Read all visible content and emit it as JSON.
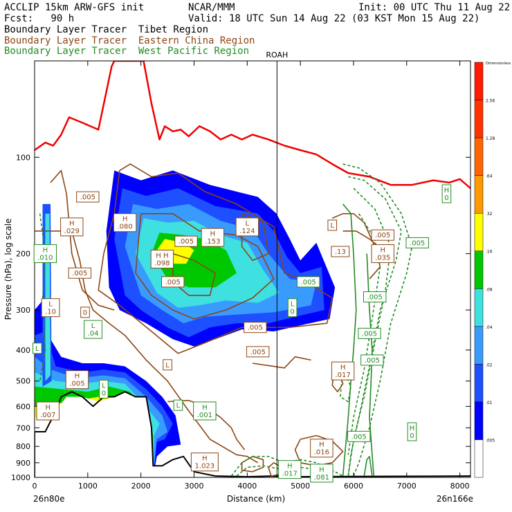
{
  "header": {
    "model": "ACCLIP 15km ARW-GFS init",
    "org": "NCAR/MMM",
    "init": "Init: 00 UTC Thu 11 Aug 22",
    "fcst": "Fcst:   90 h",
    "valid": "Valid: 18 UTC Sun 14 Aug 22 (03 KST Mon 15 Aug 22)",
    "tracers": [
      {
        "label": "Boundary Layer Tracer  Tibet Region",
        "color": "#000000"
      },
      {
        "label": "Boundary Layer Tracer  Eastern China Region",
        "color": "#8b4513"
      },
      {
        "label": "Boundary Layer Tracer  West Pacific Region",
        "color": "#228b22"
      }
    ]
  },
  "chart_data": {
    "type": "cross-section",
    "marker_label": "ROAH",
    "marker_x_km": 4560,
    "ylabel": "Pressure (hPa), log scale",
    "y_scale": "log",
    "ylim": [
      1000,
      50
    ],
    "yticks": [
      100,
      200,
      300,
      400,
      500,
      600,
      700,
      800,
      900,
      1000
    ],
    "xlabel": "Distance (km)",
    "xlim": [
      0,
      8200
    ],
    "xticks": [
      0,
      1000,
      2000,
      3000,
      4000,
      5000,
      6000,
      7000,
      8000
    ],
    "left_endpoint": "26n80e",
    "right_endpoint": "26n166e",
    "colorbar": {
      "label": "Dimensionless",
      "levels": [
        ".005",
        ".01",
        ".02",
        ".04",
        ".08",
        ".16",
        ".32",
        ".64",
        "1.28",
        "2.56"
      ],
      "colors": [
        "#ffffff",
        "#0000ff",
        "#1e50ff",
        "#3a9bff",
        "#3fe0e0",
        "#00c800",
        "#ffff00",
        "#ff9900",
        "#ff6600",
        "#ff3300",
        "#ff1a00"
      ]
    },
    "tropopause_color": "#ee0000",
    "labels": [
      {
        "text": "H\n.029",
        "x": 700,
        "p": 165,
        "color": "#8b4513"
      },
      {
        "text": ".005",
        "x": 1000,
        "p": 133,
        "color": "#8b4513"
      },
      {
        "text": "H\n.080",
        "x": 1700,
        "p": 160,
        "color": "#8b4513"
      },
      {
        "text": ".005",
        "x": 2850,
        "p": 183,
        "color": "#8b4513"
      },
      {
        "text": "H\n.153",
        "x": 3350,
        "p": 178,
        "color": "#8b4513"
      },
      {
        "text": "L\n.124",
        "x": 4000,
        "p": 165,
        "color": "#8b4513"
      },
      {
        "text": "H H\n.098",
        "x": 2400,
        "p": 208,
        "color": "#8b4513"
      },
      {
        "text": ".005",
        "x": 2600,
        "p": 245,
        "color": "#8b4513"
      },
      {
        "text": "H\n.010",
        "x": 200,
        "p": 200,
        "color": "#228b22"
      },
      {
        "text": ".005",
        "x": 850,
        "p": 230,
        "color": "#8b4513"
      },
      {
        "text": "L\n.10",
        "x": 300,
        "p": 295,
        "color": "#8b4513"
      },
      {
        "text": "0",
        "x": 950,
        "p": 305,
        "color": "#8b4513"
      },
      {
        "text": "L\n.04",
        "x": 1100,
        "p": 345,
        "color": "#228b22"
      },
      {
        "text": ".005",
        "x": 4150,
        "p": 340,
        "color": "#8b4513"
      },
      {
        "text": "L\n0",
        "x": 4850,
        "p": 295,
        "color": "#228b22"
      },
      {
        "text": ".005",
        "x": 5150,
        "p": 245,
        "color": "#228b22"
      },
      {
        "text": ".005",
        "x": 4200,
        "p": 405,
        "color": "#8b4513"
      },
      {
        "text": "L",
        "x": 2500,
        "p": 445,
        "color": "#8b4513"
      },
      {
        "text": "L",
        "x": 50,
        "p": 395,
        "color": "#228b22"
      },
      {
        "text": "H\n.005",
        "x": 800,
        "p": 495,
        "color": "#8b4513"
      },
      {
        "text": "L\n0",
        "x": 1300,
        "p": 530,
        "color": "#228b22"
      },
      {
        "text": "H\n.007",
        "x": 250,
        "p": 620,
        "color": "#8b4513"
      },
      {
        "text": "L",
        "x": 2700,
        "p": 595,
        "color": "#228b22"
      },
      {
        "text": "H\n.001",
        "x": 3200,
        "p": 620,
        "color": "#228b22"
      },
      {
        "text": "H\n1.023",
        "x": 3200,
        "p": 895,
        "color": "#8b4513"
      },
      {
        "text": "L",
        "x": 5600,
        "p": 163,
        "color": "#8b4513"
      },
      {
        "text": ".005",
        "x": 6550,
        "p": 175,
        "color": "#8b4513"
      },
      {
        "text": ".005",
        "x": 7200,
        "p": 185,
        "color": "#228b22"
      },
      {
        "text": ".13",
        "x": 5750,
        "p": 197,
        "color": "#8b4513"
      },
      {
        "text": "H\n.035",
        "x": 6550,
        "p": 200,
        "color": "#8b4513"
      },
      {
        "text": ".005",
        "x": 6400,
        "p": 273,
        "color": "#228b22"
      },
      {
        "text": ".005",
        "x": 6300,
        "p": 355,
        "color": "#228b22"
      },
      {
        "text": ".005",
        "x": 6350,
        "p": 430,
        "color": "#228b22"
      },
      {
        "text": "H\n.017",
        "x": 5800,
        "p": 465,
        "color": "#8b4513"
      },
      {
        "text": "H\n0",
        "x": 7750,
        "p": 130,
        "color": "#228b22"
      },
      {
        "text": "H\n0",
        "x": 7100,
        "p": 720,
        "color": "#228b22"
      },
      {
        "text": ".005",
        "x": 6100,
        "p": 745,
        "color": "#228b22"
      },
      {
        "text": "H\n.016",
        "x": 5400,
        "p": 810,
        "color": "#8b4513"
      },
      {
        "text": "H\n.017",
        "x": 4800,
        "p": 945,
        "color": "#228b22"
      },
      {
        "text": "H\n.081",
        "x": 5400,
        "p": 970,
        "color": "#228b22"
      }
    ]
  }
}
